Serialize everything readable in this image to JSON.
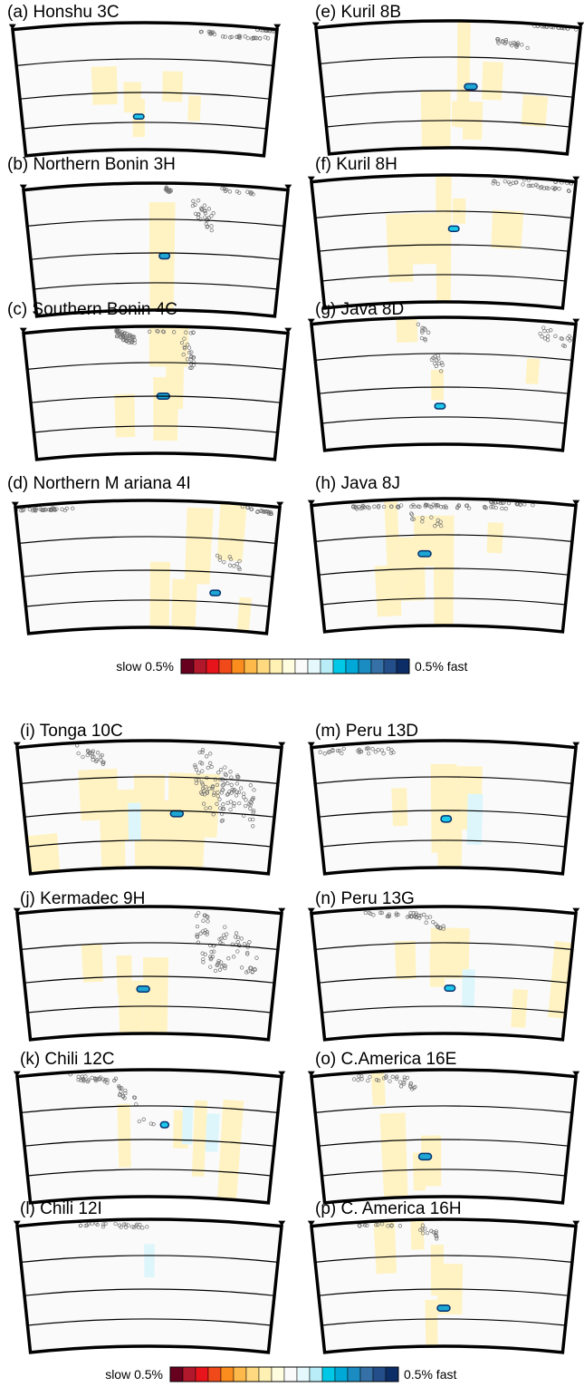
{
  "panels": [
    {
      "label": "(a)  Honshu   3C",
      "blob": {
        "ang": -0.05,
        "r": 2.22,
        "hw": 0.04,
        "hh": 0.07,
        "col": "fast3"
      },
      "yellow": [
        [
          -0.32,
          1.47,
          0.1,
          0.15
        ],
        [
          -0.1,
          1.76,
          0.07,
          0.12
        ],
        [
          0.22,
          1.5,
          0.08,
          0.12
        ],
        [
          0.4,
          2.0,
          0.05,
          0.1
        ],
        [
          -0.05,
          2.25,
          0.05,
          0.15
        ]
      ],
      "quakes": [
        [
          0.4,
          0.55,
          0.12,
          0.25,
          10
        ],
        [
          0.55,
          0.95,
          0.3,
          0.2,
          22
        ],
        [
          0.85,
          1.0,
          0.05,
          0.05,
          12
        ]
      ]
    },
    {
      "label": "(e)  Kuril   8B",
      "blob": {
        "ang": 0.18,
        "r": 1.55,
        "hw": 0.05,
        "hh": 0.09,
        "col": "fast5"
      },
      "yellow": [
        [
          0.12,
          1.02,
          0.05,
          0.5
        ],
        [
          0.35,
          1.4,
          0.08,
          0.15
        ],
        [
          0.7,
          2.05,
          0.1,
          0.12
        ],
        [
          -0.1,
          2.4,
          0.12,
          0.25
        ],
        [
          0.2,
          2.35,
          0.08,
          0.15
        ],
        [
          0.08,
          2.2,
          0.05,
          0.1
        ]
      ],
      "quakes": [
        [
          0.65,
          0.97,
          0.05,
          0.05,
          18
        ],
        [
          0.35,
          0.62,
          0.38,
          0.62,
          20
        ]
      ]
    },
    {
      "label": "(b)  Northern   Bonin   3H",
      "blob": {
        "ang": 0.07,
        "r": 1.72,
        "hw": 0.04,
        "hh": 0.09,
        "col": "fast5"
      },
      "yellow": [
        [
          0.05,
          1.7,
          0.1,
          0.17
        ],
        [
          0.05,
          1.95,
          0.1,
          0.5
        ]
      ],
      "quakes": [
        [
          0.07,
          0.12,
          0.05,
          0.25,
          12
        ],
        [
          0.28,
          0.45,
          0.2,
          1.15,
          28
        ],
        [
          0.45,
          0.8,
          0.07,
          0.2,
          12
        ]
      ]
    },
    {
      "label": "(f)  Kuril   8H",
      "blob": {
        "ang": 0.08,
        "r": 1.27,
        "hw": 0.04,
        "hh": 0.08,
        "col": "fast3"
      },
      "yellow": [
        [
          -0.35,
          1.85,
          0.1,
          0.22
        ],
        [
          -0.15,
          1.5,
          0.15,
          0.2
        ],
        [
          0.0,
          1.78,
          0.06,
          0.6
        ],
        [
          -0.25,
          1.35,
          0.2,
          0.15
        ],
        [
          0.12,
          0.85,
          0.05,
          0.1
        ],
        [
          0.5,
          1.25,
          0.12,
          0.15
        ]
      ],
      "quakes": [
        [
          0.35,
          0.97,
          0.1,
          0.25,
          28
        ],
        [
          0.6,
          0.97,
          0.05,
          0.05,
          8
        ]
      ]
    },
    {
      "label": "(c)  Southern   Bonin   4C",
      "blob": {
        "ang": 0.06,
        "r": 1.65,
        "hw": 0.05,
        "hh": 0.09,
        "col": "fast5"
      },
      "yellow": [
        [
          0.1,
          0.2,
          0.15,
          0.25
        ],
        [
          0.08,
          1.95,
          0.1,
          0.25
        ],
        [
          -0.25,
          2.1,
          0.08,
          0.17
        ],
        [
          0.15,
          1.05,
          0.07,
          0.3
        ]
      ],
      "quakes": [
        [
          -0.3,
          -0.15,
          0.05,
          0.45,
          45
        ],
        [
          -0.1,
          0.3,
          0.1,
          0.15,
          10
        ],
        [
          0.2,
          0.3,
          0.2,
          1.15,
          20
        ]
      ]
    },
    {
      "label": "(g)  Java   8D",
      "blob": {
        "ang": -0.03,
        "r": 2.1,
        "hw": 0.04,
        "hh": 0.08,
        "col": "fast3"
      },
      "yellow": [
        [
          -0.28,
          0.22,
          0.08,
          0.12
        ],
        [
          0.7,
          1.2,
          0.05,
          0.1
        ],
        [
          -0.05,
          1.6,
          0.05,
          0.12
        ]
      ],
      "quakes": [
        [
          -0.2,
          -0.1,
          0.1,
          0.7,
          10
        ],
        [
          -0.1,
          0.0,
          0.7,
          1.4,
          12
        ],
        [
          0.7,
          1.05,
          0.05,
          0.7,
          22
        ]
      ]
    },
    {
      "label": "(d)  Northern   M ariana   4I",
      "blob": {
        "ang": 0.55,
        "r": 2.14,
        "hw": 0.04,
        "hh": 0.08,
        "col": "fast5"
      },
      "yellow": [
        [
          0.4,
          1.05,
          0.1,
          0.3
        ],
        [
          0.65,
          0.6,
          0.1,
          0.25
        ],
        [
          0.35,
          1.65,
          0.05,
          0.2
        ],
        [
          0.1,
          2.5,
          0.08,
          0.35
        ],
        [
          0.3,
          2.45,
          0.1,
          0.2
        ],
        [
          0.8,
          2.8,
          0.05,
          0.2
        ]
      ],
      "quakes": [
        [
          -1.0,
          -0.7,
          0.05,
          0.15,
          25
        ],
        [
          -0.8,
          -0.55,
          0.08,
          0.2,
          10
        ],
        [
          0.7,
          0.95,
          0.05,
          0.2,
          20
        ],
        [
          0.55,
          0.75,
          1.15,
          1.6,
          12
        ]
      ]
    },
    {
      "label": "(h)  Java   8J",
      "blob": {
        "ang": -0.15,
        "r": 1.3,
        "hw": 0.05,
        "hh": 0.09,
        "col": "fast5"
      },
      "yellow": [
        [
          -0.4,
          0.6,
          0.05,
          0.35
        ],
        [
          -0.45,
          2.15,
          0.1,
          0.2
        ],
        [
          -0.25,
          1.65,
          0.1,
          0.25
        ],
        [
          0.0,
          2.05,
          0.08,
          0.55
        ],
        [
          -0.15,
          1.0,
          0.08,
          0.2
        ],
        [
          0.4,
          0.9,
          0.06,
          0.12
        ]
      ],
      "quakes": [
        [
          -0.7,
          0.5,
          0.1,
          0.25,
          60
        ],
        [
          -0.3,
          0.0,
          0.3,
          0.7,
          12
        ],
        [
          0.35,
          0.7,
          0.05,
          0.1,
          18
        ]
      ]
    },
    {
      "label": "(i) Tonga 10C",
      "blob": {
        "ang": 0.22,
        "r": 1.72,
        "hw": 0.05,
        "hh": 0.09,
        "col": "fast5"
      },
      "yellow": [
        [
          -0.4,
          1.25,
          0.15,
          0.2
        ],
        [
          -0.2,
          1.75,
          0.1,
          0.2
        ],
        [
          0.0,
          2.0,
          0.12,
          0.4
        ],
        [
          0.25,
          2.3,
          0.2,
          0.3
        ],
        [
          -0.95,
          3.0,
          0.2,
          0.3
        ],
        [
          -0.3,
          2.5,
          0.1,
          0.3
        ],
        [
          0.35,
          1.5,
          0.2,
          0.25
        ]
      ],
      "soft": [
        [
          -0.12,
          1.92,
          0.05,
          0.15,
          "fast1"
        ]
      ],
      "quakes": [
        [
          -0.55,
          -0.35,
          0.05,
          0.55,
          22
        ],
        [
          0.35,
          0.85,
          0.05,
          2.0,
          90
        ],
        [
          0.4,
          0.6,
          0.9,
          2.0,
          20
        ]
      ]
    },
    {
      "label": "(m) Peru 13D",
      "blob": {
        "ang": 0.02,
        "r": 1.85,
        "hw": 0.04,
        "hh": 0.1,
        "col": "fast3"
      },
      "yellow": [
        [
          0.2,
          1.35,
          0.1,
          0.25
        ],
        [
          0.0,
          1.6,
          0.1,
          0.35
        ],
        [
          0.05,
          2.85,
          0.1,
          0.25
        ],
        [
          -0.35,
          1.55,
          0.06,
          0.15
        ]
      ],
      "soft": [
        [
          0.25,
          1.85,
          0.06,
          0.2,
          "fast1"
        ]
      ],
      "quakes": [
        [
          -0.95,
          -0.35,
          0.05,
          0.3,
          28
        ]
      ]
    },
    {
      "label": "(j) Kermadec 9H",
      "blob": {
        "ang": -0.05,
        "r": 1.95,
        "hw": 0.05,
        "hh": 0.09,
        "col": "fast5"
      },
      "yellow": [
        [
          -0.45,
          1.3,
          0.08,
          0.15
        ],
        [
          -0.15,
          2.5,
          0.1,
          0.25
        ],
        [
          0.05,
          2.1,
          0.1,
          0.3
        ],
        [
          -0.2,
          1.6,
          0.06,
          0.15
        ]
      ],
      "quakes": [
        [
          0.35,
          0.85,
          0.05,
          1.6,
          60
        ],
        [
          0.4,
          0.6,
          1.0,
          1.6,
          20
        ]
      ]
    },
    {
      "label": "(n) Peru 13G",
      "blob": {
        "ang": 0.05,
        "r": 1.93,
        "hw": 0.04,
        "hh": 0.09,
        "col": "fast3"
      },
      "yellow": [
        [
          0.05,
          1.1,
          0.15,
          0.2
        ],
        [
          -0.05,
          1.45,
          0.06,
          0.15
        ],
        [
          0.98,
          1.6,
          0.12,
          0.3
        ],
        [
          0.62,
          2.35,
          0.06,
          0.15
        ],
        [
          -0.3,
          1.25,
          0.08,
          0.15
        ]
      ],
      "soft": [
        [
          0.2,
          1.93,
          0.05,
          0.15,
          "fast1"
        ]
      ],
      "quakes": [
        [
          -0.6,
          -0.1,
          0.05,
          0.3,
          30
        ],
        [
          -0.15,
          0.0,
          0.3,
          0.55,
          10
        ]
      ]
    },
    {
      "label": "(k) Chili 12C",
      "blob": {
        "ang": 0.12,
        "r": 1.3,
        "hw": 0.03,
        "hh": 0.09,
        "col": "fast3"
      },
      "yellow": [
        [
          -0.2,
          1.55,
          0.05,
          0.25
        ],
        [
          0.4,
          1.6,
          0.05,
          0.3
        ],
        [
          0.65,
          1.85,
          0.08,
          0.4
        ],
        [
          0.25,
          1.4,
          0.06,
          0.15
        ]
      ],
      "soft": [
        [
          0.3,
          1.3,
          0.04,
          0.15,
          "fast1"
        ],
        [
          0.5,
          1.45,
          0.05,
          0.15,
          "fast1"
        ]
      ],
      "quakes": [
        [
          -0.6,
          -0.25,
          0.05,
          0.35,
          30
        ],
        [
          -0.25,
          -0.1,
          0.35,
          0.85,
          15
        ],
        [
          -0.1,
          0.05,
          1.1,
          1.4,
          4
        ]
      ]
    },
    {
      "label": "(o) C.America 16E",
      "blob": {
        "ang": -0.15,
        "r": 2.05,
        "hw": 0.05,
        "hh": 0.1,
        "col": "fast5"
      },
      "yellow": [
        [
          -0.4,
          2.05,
          0.1,
          0.35
        ],
        [
          -0.1,
          2.15,
          0.08,
          0.2
        ],
        [
          -0.2,
          2.4,
          0.05,
          0.15
        ],
        [
          -0.5,
          0.35,
          0.05,
          0.15
        ]
      ],
      "quakes": [
        [
          -0.7,
          -0.25,
          0.05,
          0.3,
          20
        ],
        [
          -0.35,
          -0.2,
          0.2,
          0.5,
          10
        ]
      ]
    },
    {
      "label": "(l) Chili 12I",
      "blob": null,
      "yellow": [],
      "soft": [
        [
          0.0,
          0.98,
          0.04,
          0.13,
          "fast1"
        ]
      ],
      "quakes": [
        [
          -0.55,
          -0.1,
          0.04,
          0.2,
          20
        ],
        [
          -0.12,
          0.02,
          0.1,
          0.25,
          6
        ]
      ]
    },
    {
      "label": "(p) C. America 16H",
      "blob": {
        "ang": 0.0,
        "r": 2.1,
        "hw": 0.05,
        "hh": 0.09,
        "col": "fast5"
      },
      "yellow": [
        [
          -0.45,
          0.5,
          0.08,
          0.25
        ],
        [
          -0.05,
          1.2,
          0.05,
          0.2
        ],
        [
          0.05,
          1.65,
          0.1,
          0.2
        ],
        [
          -0.1,
          2.5,
          0.05,
          0.2
        ],
        [
          -0.2,
          0.35,
          0.05,
          0.12
        ]
      ],
      "quakes": [
        [
          -0.65,
          -0.3,
          0.05,
          0.15,
          12
        ],
        [
          -0.2,
          -0.05,
          0.05,
          0.5,
          14
        ]
      ]
    }
  ],
  "colorbar": {
    "slow_label": "slow 0.5%",
    "fast_label": "0.5% fast",
    "colors": [
      "#67001f",
      "#b2182b",
      "#e8141c",
      "#f04a1a",
      "#fb8c1e",
      "#fdb94a",
      "#fed980",
      "#fff0b4",
      "#fffde0",
      "#fafafa",
      "#e5f8fb",
      "#b9eef8",
      "#00c8e6",
      "#00a8d8",
      "#1a8cc2",
      "#3570a6",
      "#244e8a",
      "#0d2d67"
    ]
  },
  "palette": {
    "slow": "#fff3c4",
    "fast1": "#dcf6fb",
    "fast3": "#1ec8ea",
    "fast5": "#1ea6d4",
    "fast_dark": "#053270",
    "line": "#000000",
    "quake": "#707070"
  }
}
